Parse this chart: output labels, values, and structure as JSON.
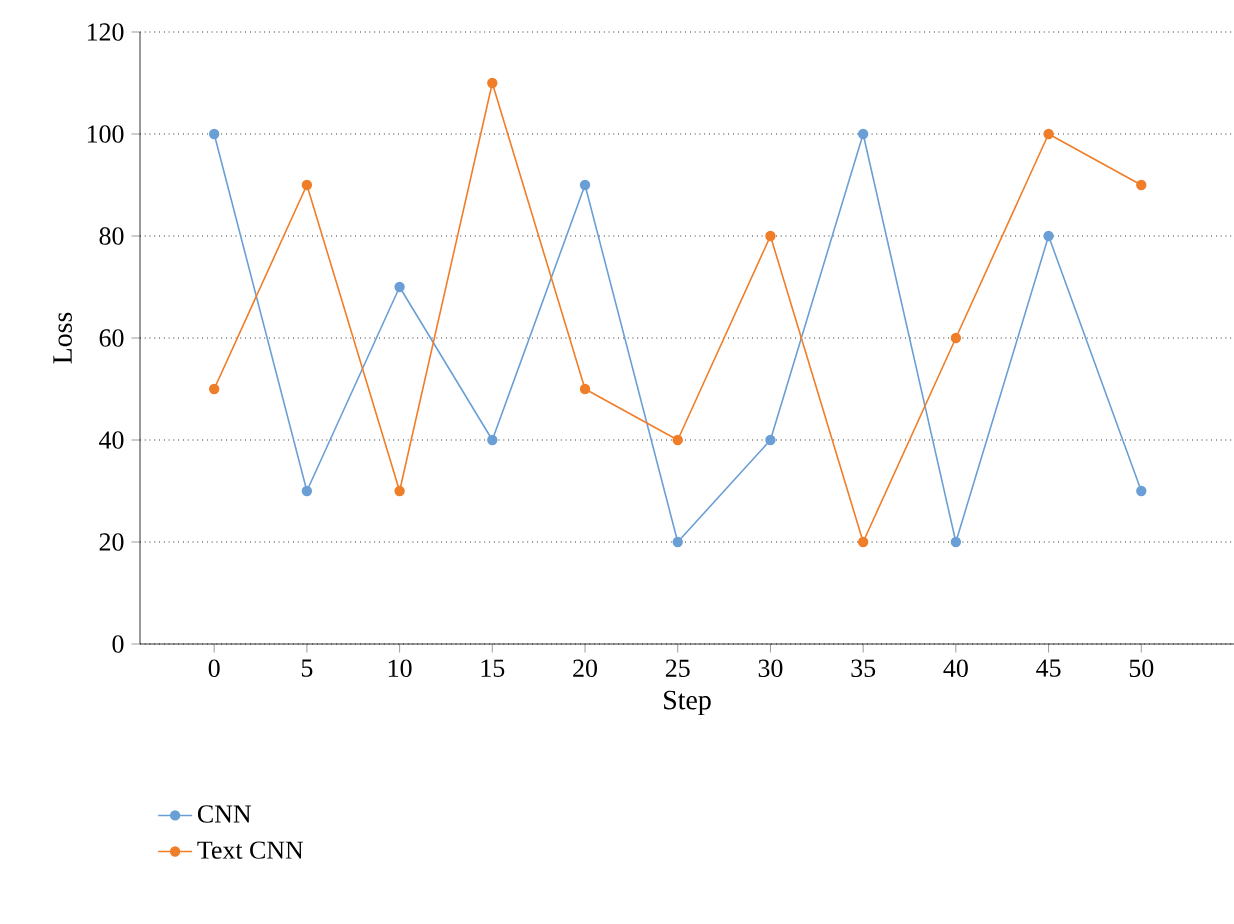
{
  "chart_data": {
    "type": "line",
    "xlabel": "Step",
    "ylabel": "Loss",
    "x": [
      0,
      5,
      10,
      15,
      20,
      25,
      30,
      35,
      40,
      45,
      50
    ],
    "series": [
      {
        "name": "CNN",
        "color": "#6a9fd6",
        "values": [
          100,
          30,
          70,
          40,
          90,
          20,
          40,
          100,
          20,
          80,
          30
        ]
      },
      {
        "name": "Text CNN",
        "color": "#f07d28",
        "values": [
          50,
          90,
          30,
          110,
          50,
          40,
          80,
          20,
          60,
          100,
          90
        ]
      }
    ],
    "xlim": [
      -4,
      55
    ],
    "ylim": [
      0,
      120
    ],
    "xticks": [
      0,
      5,
      10,
      15,
      20,
      25,
      30,
      35,
      40,
      45,
      50
    ],
    "yticks": [
      0,
      20,
      40,
      60,
      80,
      100,
      120
    ],
    "grid": "y",
    "legend": "bottom left",
    "marker": "circle",
    "line_style": "solid"
  }
}
